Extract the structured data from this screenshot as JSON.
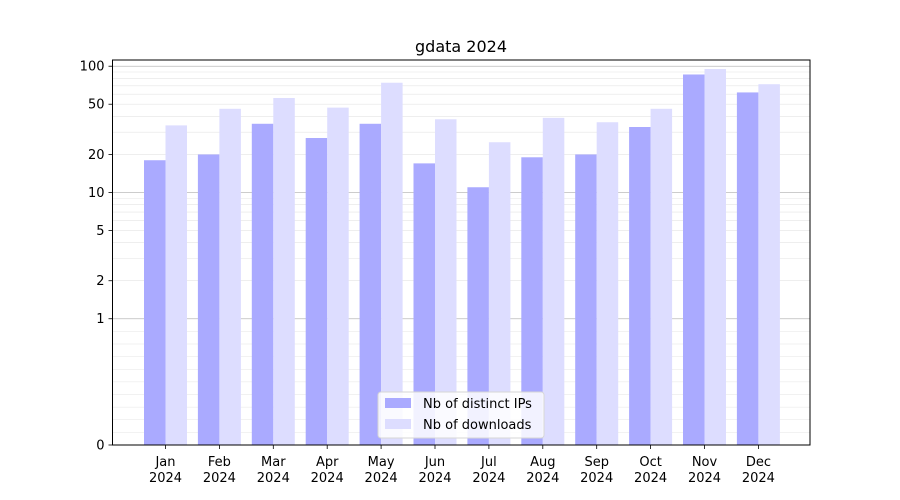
{
  "chart_data": {
    "type": "bar",
    "title": "gdata 2024",
    "xlabel": "",
    "ylabel": "",
    "yscale": "symlog",
    "ylim": [
      0,
      112
    ],
    "y_ticks": [
      0,
      1,
      2,
      5,
      10,
      20,
      50,
      100
    ],
    "grid": "horizontal",
    "legend_position": "lower center",
    "categories": [
      [
        "Jan",
        "2024"
      ],
      [
        "Feb",
        "2024"
      ],
      [
        "Mar",
        "2024"
      ],
      [
        "Apr",
        "2024"
      ],
      [
        "May",
        "2024"
      ],
      [
        "Jun",
        "2024"
      ],
      [
        "Jul",
        "2024"
      ],
      [
        "Aug",
        "2024"
      ],
      [
        "Sep",
        "2024"
      ],
      [
        "Oct",
        "2024"
      ],
      [
        "Nov",
        "2024"
      ],
      [
        "Dec",
        "2024"
      ]
    ],
    "series": [
      {
        "name": "Nb of distinct IPs",
        "color": "#aaaaff",
        "values": [
          18,
          20,
          35,
          27,
          35,
          17,
          11,
          19,
          20,
          33,
          86,
          62
        ]
      },
      {
        "name": "Nb of downloads",
        "color": "#ddddff",
        "values": [
          34,
          46,
          56,
          47,
          74,
          38,
          25,
          39,
          36,
          46,
          95,
          72
        ]
      }
    ]
  }
}
